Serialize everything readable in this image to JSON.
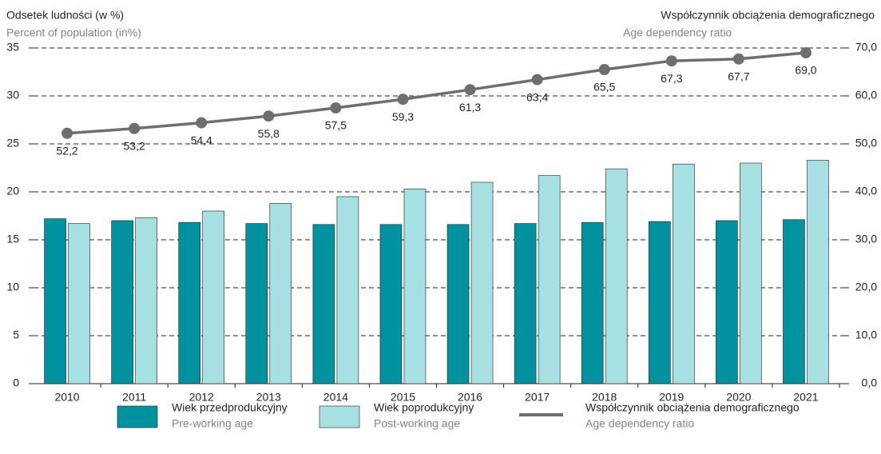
{
  "chart_data": {
    "type": "bar-line",
    "y_label": "Odsetek ludności (w %)",
    "y_label_en": "Percent of population (in%)",
    "y2_label": "Współczynnik obciążenia demograficznego",
    "y2_label_en": "Age dependency ratio",
    "categories": [
      "2010",
      "2011",
      "2012",
      "2013",
      "2014",
      "2015",
      "2016",
      "2017",
      "2018",
      "2019",
      "2020",
      "2021"
    ],
    "series": [
      {
        "name": "Wiek przedprodukcyjny",
        "name_en": "Pre-working age",
        "type": "bar",
        "color": "#00929f",
        "values": [
          17.2,
          17.0,
          16.8,
          16.7,
          16.6,
          16.6,
          16.6,
          16.7,
          16.8,
          16.9,
          17.0,
          17.1
        ]
      },
      {
        "name": "Wiek poprodukcyjny",
        "name_en": "Post-working age",
        "type": "bar",
        "color": "#a7e0e3",
        "values": [
          16.7,
          17.3,
          18.0,
          18.8,
          19.5,
          20.3,
          21.0,
          21.7,
          22.4,
          22.9,
          23.0,
          23.3
        ]
      },
      {
        "name": "Współczynnik obciążenia demograficznego",
        "name_en": "Age dependency ratio",
        "type": "line",
        "axis": "y2",
        "color": "#6d6e71",
        "values": [
          52.2,
          53.2,
          54.4,
          55.8,
          57.5,
          59.3,
          61.3,
          63.4,
          65.5,
          67.3,
          67.7,
          69.0
        ],
        "value_labels": [
          "52,2",
          "53,2",
          "54,4",
          "55,8",
          "57,5",
          "59,3",
          "61,3",
          "63,4",
          "65,5",
          "67,3",
          "67,7",
          "69,0"
        ]
      }
    ],
    "ylim": [
      0,
      35
    ],
    "yticks": [
      0,
      5,
      10,
      15,
      20,
      25,
      30,
      35
    ],
    "y2lim": [
      0,
      70
    ],
    "y2ticks": [
      {
        "value": 0,
        "label": "0,0"
      },
      {
        "value": 10,
        "label": "10,0"
      },
      {
        "value": 20,
        "label": "20,0"
      },
      {
        "value": 30,
        "label": "30,0"
      },
      {
        "value": 40,
        "label": "40,0"
      },
      {
        "value": 50,
        "label": "50,0"
      },
      {
        "value": 60,
        "label": "60,0"
      },
      {
        "value": 70,
        "label": "70,0"
      }
    ],
    "grid": true
  }
}
